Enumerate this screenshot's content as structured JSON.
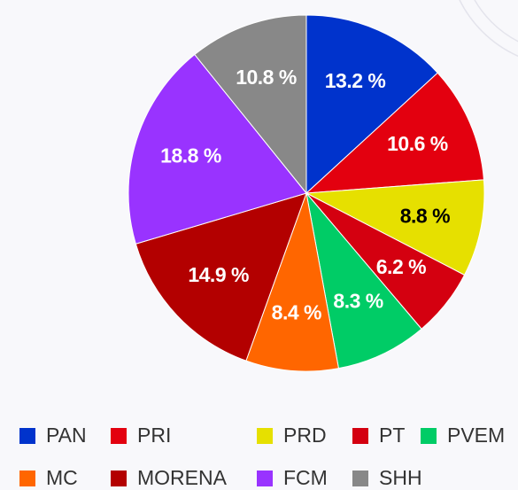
{
  "chart_data": {
    "type": "pie",
    "categories": [
      "PAN",
      "PRI",
      "PRD",
      "PT",
      "PVEM",
      "MC",
      "MORENA",
      "FCM",
      "SHH"
    ],
    "values": [
      13.2,
      10.6,
      8.8,
      6.2,
      8.3,
      8.4,
      14.9,
      18.8,
      10.8
    ],
    "value_labels": [
      "13.2 %",
      "10.6 %",
      "8.8 %",
      "6.2 %",
      "8.3 %",
      "8.4 %",
      "14.9 %",
      "18.8 %",
      "10.8 %"
    ],
    "colors": [
      "#0033cc",
      "#e3000f",
      "#e6e000",
      "#d40010",
      "#00cc66",
      "#ff6600",
      "#b30000",
      "#9933ff",
      "#888888"
    ],
    "legend": "bottom"
  }
}
